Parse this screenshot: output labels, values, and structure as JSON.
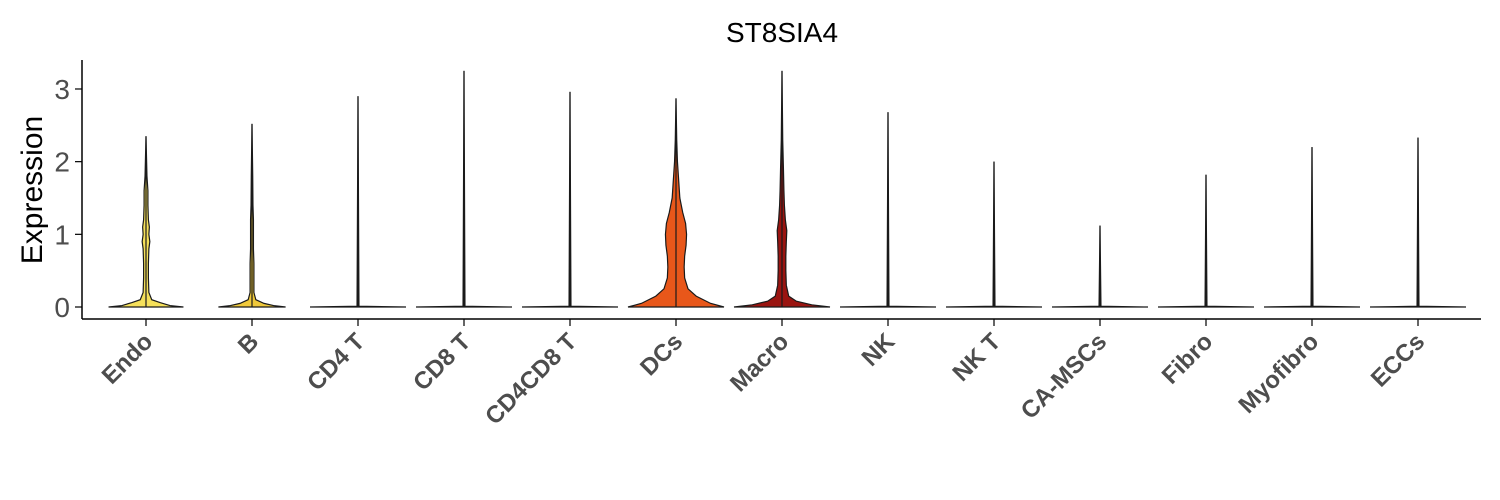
{
  "chart_data": {
    "type": "violin",
    "title": "ST8SIA4",
    "xlabel": "",
    "ylabel": "Expression",
    "ylim": [
      -0.15,
      3.4
    ],
    "yticks": [
      0,
      1,
      2,
      3
    ],
    "grid": false,
    "legend": "none",
    "categories": [
      "Endo",
      "B",
      "CD4 T",
      "CD8 T",
      "CD4CD8 T",
      "DCs",
      "Macro",
      "NK",
      "NK T",
      "CA-MSCs",
      "Fibro",
      "Myofibro",
      "ECCs"
    ],
    "colors": [
      "#f5e05a",
      "#f0c93b",
      "#f2bf38",
      "#f1b534",
      "#efa52e",
      "#e8571a",
      "#9a1410",
      "#8c0d0a",
      "#7a0a08",
      "#6b0806",
      "#5c0605",
      "#4e0504",
      "#420403"
    ],
    "series": [
      {
        "category": "Endo",
        "max": 2.35,
        "profile": [
          [
            0,
            0.78
          ],
          [
            0.02,
            0.5
          ],
          [
            0.06,
            0.3
          ],
          [
            0.1,
            0.12
          ],
          [
            0.2,
            0.06
          ],
          [
            0.4,
            0.05
          ],
          [
            0.6,
            0.05
          ],
          [
            0.8,
            0.06
          ],
          [
            0.9,
            0.08
          ],
          [
            1.0,
            0.06
          ],
          [
            1.1,
            0.07
          ],
          [
            1.2,
            0.05
          ],
          [
            1.4,
            0.04
          ],
          [
            1.6,
            0.04
          ],
          [
            1.8,
            0.02
          ],
          [
            2.35,
            0
          ]
        ]
      },
      {
        "category": "B",
        "max": 2.52,
        "profile": [
          [
            0,
            0.7
          ],
          [
            0.02,
            0.45
          ],
          [
            0.05,
            0.25
          ],
          [
            0.1,
            0.08
          ],
          [
            0.2,
            0.04
          ],
          [
            0.4,
            0.04
          ],
          [
            0.6,
            0.04
          ],
          [
            0.8,
            0.03
          ],
          [
            1.0,
            0.03
          ],
          [
            1.2,
            0.03
          ],
          [
            1.4,
            0.02
          ],
          [
            1.8,
            0.015
          ],
          [
            2.52,
            0
          ]
        ]
      },
      {
        "category": "CD4 T",
        "max": 2.9,
        "profile": [
          [
            0,
            1.0
          ],
          [
            0.01,
            0.02
          ],
          [
            2.9,
            0
          ]
        ]
      },
      {
        "category": "CD8 T",
        "max": 3.25,
        "profile": [
          [
            0,
            1.0
          ],
          [
            0.01,
            0.02
          ],
          [
            3.25,
            0
          ]
        ]
      },
      {
        "category": "CD4CD8 T",
        "max": 2.96,
        "profile": [
          [
            0,
            1.0
          ],
          [
            0.01,
            0.02
          ],
          [
            2.96,
            0
          ]
        ]
      },
      {
        "category": "DCs",
        "max": 2.87,
        "profile": [
          [
            0,
            1.0
          ],
          [
            0.05,
            0.72
          ],
          [
            0.15,
            0.42
          ],
          [
            0.25,
            0.25
          ],
          [
            0.4,
            0.18
          ],
          [
            0.55,
            0.17
          ],
          [
            0.7,
            0.18
          ],
          [
            0.85,
            0.21
          ],
          [
            1.0,
            0.22
          ],
          [
            1.15,
            0.2
          ],
          [
            1.3,
            0.14
          ],
          [
            1.5,
            0.08
          ],
          [
            1.7,
            0.06
          ],
          [
            2.0,
            0.03
          ],
          [
            2.3,
            0.015
          ],
          [
            2.87,
            0
          ]
        ]
      },
      {
        "category": "Macro",
        "max": 3.25,
        "profile": [
          [
            0,
            1.0
          ],
          [
            0.03,
            0.62
          ],
          [
            0.08,
            0.3
          ],
          [
            0.15,
            0.14
          ],
          [
            0.3,
            0.09
          ],
          [
            0.5,
            0.08
          ],
          [
            0.7,
            0.08
          ],
          [
            0.9,
            0.09
          ],
          [
            1.05,
            0.1
          ],
          [
            1.2,
            0.07
          ],
          [
            1.4,
            0.05
          ],
          [
            1.6,
            0.04
          ],
          [
            1.9,
            0.03
          ],
          [
            2.3,
            0.015
          ],
          [
            3.25,
            0
          ]
        ]
      },
      {
        "category": "NK",
        "max": 2.68,
        "profile": [
          [
            0,
            1.0
          ],
          [
            0.01,
            0.02
          ],
          [
            2.68,
            0
          ]
        ]
      },
      {
        "category": "NK T",
        "max": 2.0,
        "profile": [
          [
            0,
            1.0
          ],
          [
            0.01,
            0.02
          ],
          [
            2.0,
            0
          ]
        ]
      },
      {
        "category": "CA-MSCs",
        "max": 1.12,
        "profile": [
          [
            0,
            1.0
          ],
          [
            0.01,
            0.02
          ],
          [
            1.12,
            0
          ]
        ]
      },
      {
        "category": "Fibro",
        "max": 1.82,
        "profile": [
          [
            0,
            1.0
          ],
          [
            0.01,
            0.02
          ],
          [
            1.82,
            0
          ]
        ]
      },
      {
        "category": "Myofibro",
        "max": 2.2,
        "profile": [
          [
            0,
            1.0
          ],
          [
            0.01,
            0.02
          ],
          [
            2.2,
            0
          ]
        ]
      },
      {
        "category": "ECCs",
        "max": 2.33,
        "profile": [
          [
            0,
            1.0
          ],
          [
            0.01,
            0.02
          ],
          [
            2.33,
            0
          ]
        ]
      }
    ]
  }
}
